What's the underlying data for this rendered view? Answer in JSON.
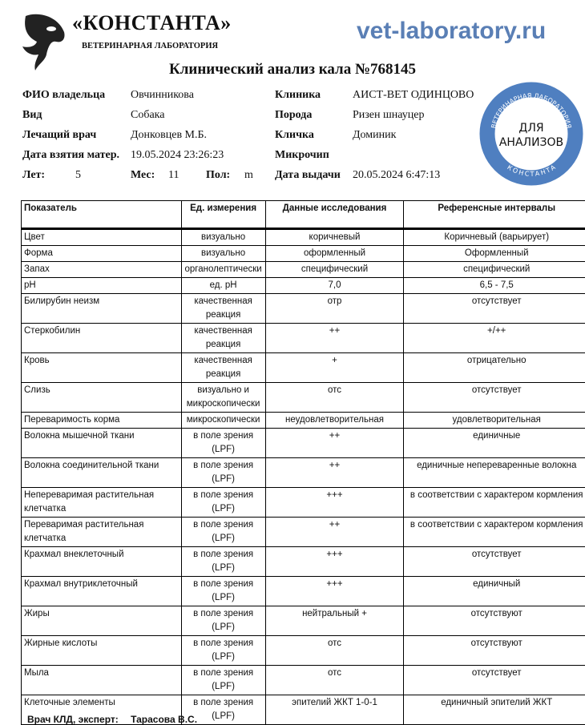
{
  "header": {
    "brand": "«КОНСТАНТА»",
    "brand_sub": "ВЕТЕРИНАРНАЯ ЛАБОРАТОРИЯ",
    "site": "vet-laboratory.ru",
    "title": "Клинический анализ кала №768145"
  },
  "stamp": {
    "ring_top": "ВЕТЕРИНАРНАЯ ЛАБОРАТОРИЯ",
    "line1": "ДЛЯ",
    "line2": "АНАЛИЗОВ",
    "ring_bottom": "КОНСТАНТА",
    "color": "#4f7fc0"
  },
  "info": {
    "owner_label": "ФИО владельца",
    "owner": "Овчинникова",
    "species_label": "Вид",
    "species": "Собака",
    "doctor_label": "Лечащий врач",
    "doctor": "Донковцев М.Б.",
    "sample_date_label": "Дата взятия матер.",
    "sample_date": "19.05.2024 23:26:23",
    "years_label": "Лет:",
    "years": "5",
    "months_label": "Мес:",
    "months": "11",
    "sex_label": "Пол:",
    "sex": "m",
    "clinic_label": "Клиника",
    "clinic": "АИСТ-ВЕТ ОДИНЦОВО",
    "breed_label": "Порода",
    "breed": "Ризен шнауцер",
    "name_label": "Кличка",
    "name": "Доминик",
    "chip_label": "Микрочип",
    "issue_date_label": "Дата выдачи",
    "issue_date": "20.05.2024 6:47:13"
  },
  "table": {
    "headers": [
      "Показатель",
      "Ед. измерения",
      "Данные исследования",
      "Референсные интервалы"
    ],
    "rows": [
      [
        "Цвет",
        "визуально",
        "коричневый",
        "Коричневый (варьирует)"
      ],
      [
        "Форма",
        "визуально",
        "оформленный",
        "Оформленный"
      ],
      [
        "Запах",
        "органолептически",
        "специфический",
        "специфический"
      ],
      [
        "pH",
        "ед. pH",
        "7,0",
        "6,5 - 7,5"
      ],
      [
        "Билирубин неизм",
        "качественная реакция",
        "отр",
        "отсутствует"
      ],
      [
        "Стеркобилин",
        "качественная реакция",
        "++",
        "+/++"
      ],
      [
        "Кровь",
        "качественная реакция",
        "+",
        "отрицательно"
      ],
      [
        "Слизь",
        "визуально и микроскопически",
        "отс",
        "отсутствует"
      ],
      [
        "Переваримость корма",
        "микроскопически",
        "неудовлетворительная",
        "удовлетворительная"
      ],
      [
        "Волокна мышечной ткани",
        "в поле зрения (LPF)",
        "++",
        "единичные"
      ],
      [
        "Волокна соединительной ткани",
        "в поле зрения (LPF)",
        "++",
        "единичные непереваренные волокна"
      ],
      [
        "Непереваримая растительная клетчатка",
        "в поле зрения (LPF)",
        "+++",
        "в соответствии с характером кормления"
      ],
      [
        "Переваримая растительная клетчатка",
        "в поле зрения (LPF)",
        "++",
        "в соответствии с характером кормления"
      ],
      [
        "Крахмал внеклеточный",
        "в поле зрения (LPF)",
        "+++",
        "отсутствует"
      ],
      [
        "Крахмал внутриклеточный",
        "в поле зрения (LPF)",
        "+++",
        "единичный"
      ],
      [
        "Жиры",
        "в поле зрения (LPF)",
        "нейтральный +",
        "отсутствуют"
      ],
      [
        "Жирные кислоты",
        "в поле зрения (LPF)",
        "отс",
        "отсутствуют"
      ],
      [
        "Мыла",
        "в поле зрения (LPF)",
        "отс",
        "отсутствует"
      ],
      [
        "Клеточные элементы",
        "в поле зрения (LPF)",
        "эпителий ЖКТ 1-0-1",
        "единичный эпителий ЖКТ"
      ]
    ]
  },
  "footer": {
    "label": "Врач КЛД, эксперт:",
    "name": "Тарасова В.С."
  }
}
